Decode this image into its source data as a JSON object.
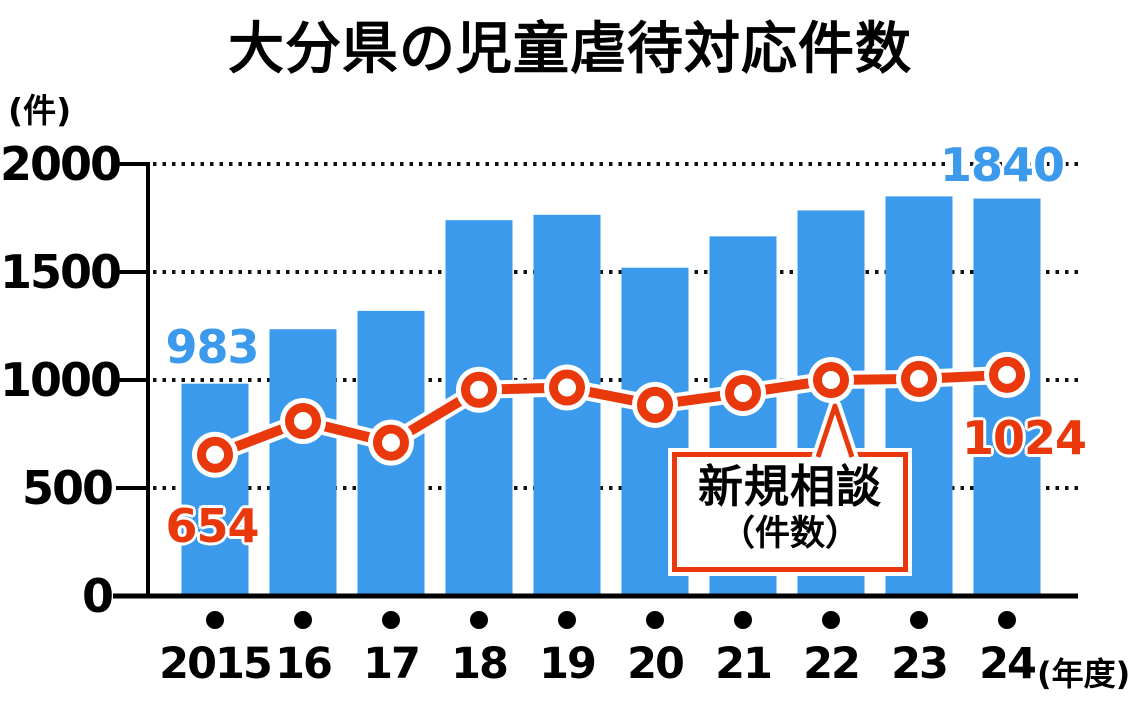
{
  "title": "大分県の児童虐待対応件数",
  "unit_label": "(件)",
  "x_axis_suffix": "(年度)",
  "callout": {
    "line1": "新規相談",
    "line2": "（件数）"
  },
  "colors": {
    "bar": "#3B9AEC",
    "line": "#E8380C",
    "axis": "#000000",
    "grid": "#111111",
    "background": "#FFFFFF",
    "blue_label": "#3B9AEC",
    "red_label": "#E8380C"
  },
  "chart_data": {
    "type": "bar+line",
    "title": "大分県の児童虐待対応件数",
    "ylabel": "(件)",
    "xlabel": "(年度)",
    "categories": [
      "2015",
      "16",
      "17",
      "18",
      "19",
      "20",
      "21",
      "22",
      "23",
      "24"
    ],
    "series": [
      {
        "name": "対応件数",
        "type": "bar",
        "color": "#3B9AEC",
        "values": [
          983,
          1235,
          1320,
          1740,
          1765,
          1520,
          1665,
          1785,
          1850,
          1840
        ]
      },
      {
        "name": "新規相談（件数）",
        "type": "line",
        "color": "#E8380C",
        "values": [
          654,
          810,
          710,
          955,
          965,
          885,
          940,
          1000,
          1005,
          1024
        ]
      }
    ],
    "ylim": [
      0,
      2000
    ],
    "yticks": [
      0,
      500,
      1000,
      1500,
      2000
    ],
    "grid": "dotted-horizontal",
    "legend_position": "callout-on-line",
    "annotations": {
      "bar_first": "983",
      "bar_last": "1840",
      "line_first": "654",
      "line_last": "1024"
    }
  }
}
